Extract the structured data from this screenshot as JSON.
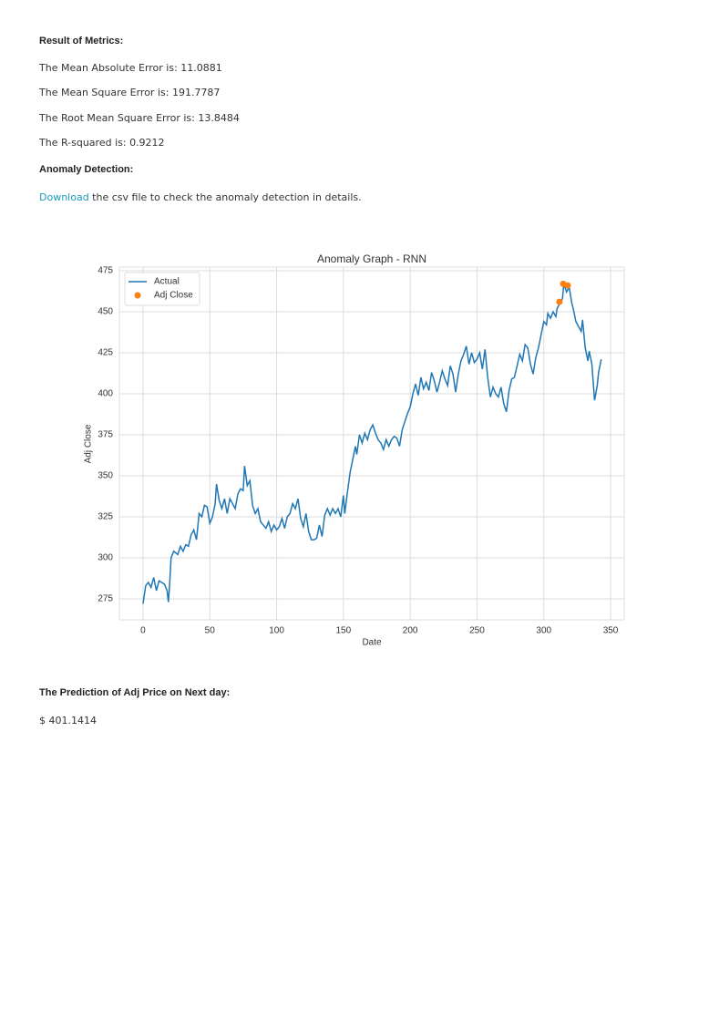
{
  "metrics_heading": "Result of Metrics:",
  "metrics": [
    "The Mean Absolute Error is: 11.0881",
    "The Mean Square Error is: 191.7787",
    "The Root Mean Square Error is: 13.8484",
    "The R-squared is: 0.9212"
  ],
  "anomaly_heading": "Anomaly Detection:",
  "download": {
    "link": "Download",
    "text": " the csv file to check the anomaly detection in details."
  },
  "prediction_heading": "The Prediction of Adj Price on Next day:",
  "prediction": "$ 401.1414",
  "chart_data": {
    "type": "line",
    "title": "Anomaly Graph - RNN",
    "x_label": "Date",
    "y_label": "Adj Close",
    "xlim": [
      -17.7,
      360.2
    ],
    "ylim": [
      262.2,
      477.2
    ],
    "xticks": [
      0,
      50,
      100,
      150,
      200,
      250,
      300,
      350
    ],
    "yticks": [
      275,
      300,
      325,
      350,
      375,
      400,
      425,
      450,
      475
    ],
    "grid": true,
    "legend": "upper left",
    "series": [
      {
        "name": "Actual",
        "type": "line",
        "color": "#1f77b4",
        "x": [
          0,
          2,
          4,
          6,
          8,
          10,
          12,
          14,
          16,
          18,
          19,
          20,
          21,
          23,
          26,
          28,
          30,
          32,
          34,
          36,
          38,
          40,
          42,
          44,
          46,
          48,
          50,
          52,
          54,
          55,
          57,
          59,
          61,
          63,
          65,
          67,
          69,
          71,
          73,
          75,
          76,
          78,
          80,
          82,
          84,
          86,
          88,
          90,
          92,
          94,
          96,
          98,
          100,
          102,
          104,
          106,
          108,
          110,
          112,
          114,
          116,
          118,
          120,
          122,
          124,
          126,
          128,
          130,
          132,
          134,
          136,
          138,
          140,
          142,
          144,
          146,
          148,
          150,
          151,
          153,
          155,
          157,
          159,
          160,
          162,
          164,
          166,
          168,
          170,
          172,
          174,
          176,
          178,
          180,
          182,
          184,
          186,
          188,
          190,
          192,
          194,
          196,
          198,
          200,
          202,
          204,
          206,
          208,
          210,
          212,
          214,
          216,
          218,
          220,
          222,
          224,
          226,
          228,
          230,
          232,
          234,
          236,
          238,
          240,
          242,
          244,
          246,
          248,
          250,
          252,
          254,
          256,
          258,
          260,
          262,
          264,
          266,
          268,
          270,
          272,
          274,
          276,
          278,
          280,
          282,
          284,
          286,
          288,
          290,
          292,
          294,
          296,
          298,
          300,
          302,
          303,
          305,
          307,
          309,
          310,
          312,
          314,
          315,
          317,
          319,
          321,
          322,
          324,
          326,
          328,
          329,
          331,
          333,
          334,
          336,
          338,
          340,
          341,
          343
        ],
        "values": [
          272,
          283,
          285,
          282,
          288,
          280,
          286,
          285,
          284,
          280,
          273,
          285,
          300,
          304,
          302,
          307,
          304,
          308,
          307,
          314,
          317,
          311,
          327,
          325,
          332,
          331,
          321,
          325,
          333,
          345,
          335,
          330,
          336,
          327,
          336,
          333,
          330,
          339,
          342,
          341,
          356,
          344,
          347,
          332,
          327,
          330,
          322,
          320,
          318,
          322,
          316,
          320,
          317,
          319,
          324,
          318,
          325,
          327,
          333,
          330,
          336,
          324,
          319,
          327,
          316,
          311,
          311,
          312,
          320,
          313,
          326,
          330,
          326,
          330,
          327,
          330,
          325,
          338,
          327,
          340,
          352,
          360,
          368,
          363,
          375,
          370,
          376,
          372,
          378,
          381,
          376,
          372,
          370,
          366,
          372,
          368,
          372,
          374,
          373,
          368,
          378,
          383,
          388,
          392,
          400,
          406,
          399,
          410,
          403,
          407,
          402,
          413,
          408,
          401,
          407,
          414,
          409,
          405,
          417,
          412,
          401,
          412,
          420,
          424,
          429,
          418,
          425,
          419,
          421,
          425,
          415,
          427,
          410,
          398,
          404,
          400,
          398,
          404,
          394,
          389,
          402,
          409,
          410,
          417,
          424,
          420,
          430,
          428,
          418,
          412,
          422,
          428,
          436,
          444,
          442,
          449,
          446,
          450,
          447,
          452,
          455,
          458,
          467,
          462,
          465,
          455,
          452,
          444,
          441,
          438,
          445,
          428,
          420,
          426,
          418,
          396,
          405,
          413,
          421
        ]
      },
      {
        "name": "Adj Close",
        "type": "scatter",
        "color": "#ff7f0e",
        "x": [
          311.7,
          314.5,
          317.9
        ],
        "values": [
          456,
          467,
          466
        ]
      }
    ]
  }
}
